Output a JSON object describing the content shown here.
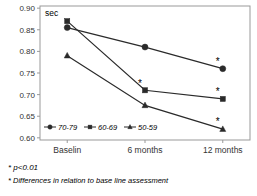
{
  "chart_data": {
    "type": "line",
    "title": "sec",
    "categories": [
      "Baselin",
      "6 months",
      "12 months"
    ],
    "series": [
      {
        "name": "70-79",
        "color": "#2a2a2a",
        "marker": "circle",
        "line_style": "solid",
        "values": [
          0.855,
          0.81,
          0.76
        ]
      },
      {
        "name": "60-69",
        "color": "#2a2a2a",
        "marker": "square",
        "line_style": "solid",
        "values": [
          0.87,
          0.71,
          0.69
        ]
      },
      {
        "name": "50-59",
        "color": "#2a2a2a",
        "marker": "triangle",
        "line_style": "solid",
        "values": [
          0.79,
          0.675,
          0.62
        ]
      }
    ],
    "ylim": [
      0.595,
      0.905
    ],
    "yticks": [
      {
        "value": 0.6,
        "label": "0.60"
      },
      0.65,
      {
        "value": 0.7,
        "label": "0.70"
      },
      0.75,
      {
        "value": 0.8,
        "label": "0.80"
      },
      0.85,
      {
        "value": 0.9,
        "label": "0.90"
      }
    ],
    "annotations": [
      {
        "text": "*",
        "x": "6 months",
        "y": 0.71
      },
      {
        "text": "*",
        "x": "12 months",
        "y": 0.762
      },
      {
        "text": "*",
        "x": "12 months",
        "y": 0.692
      },
      {
        "text": "*",
        "x": "12 months",
        "y": 0.622
      }
    ],
    "footnotes": [
      "* p<0.01",
      "* Differences in relation to base line assessment"
    ],
    "legend": "lower left",
    "grid": false
  }
}
